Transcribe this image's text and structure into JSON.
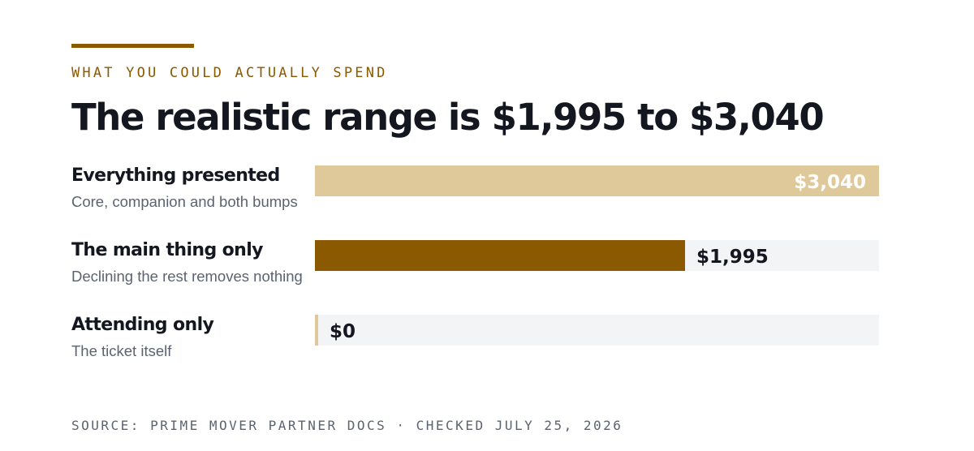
{
  "eyebrow": "WHAT YOU COULD ACTUALLY SPEND",
  "headline": "The realistic range is $1,995 to $3,040",
  "colors": {
    "accent": "#8b5a00",
    "bar_light": "#dfc99a",
    "track": "#f2f4f6",
    "ink": "#14171f",
    "muted": "#5c6370"
  },
  "chart_data": {
    "type": "bar",
    "orientation": "horizontal",
    "xlim": [
      0,
      3040
    ],
    "bars": [
      {
        "label": "Everything presented",
        "sublabel": "Core, companion and both bumps",
        "value": 3040,
        "value_label": "$3,040",
        "color": "#dfc99a",
        "label_position": "inside",
        "value_label_color": "#ffffff"
      },
      {
        "label": "The main thing only",
        "sublabel": "Declining the rest removes nothing",
        "value": 1995,
        "value_label": "$1,995",
        "color": "#8b5a00",
        "label_position": "outside",
        "value_label_color": "#14171f"
      },
      {
        "label": "Attending only",
        "sublabel": "The ticket itself",
        "value": 0,
        "value_label": "$0",
        "color": "#dfc99a",
        "label_position": "outside",
        "value_label_color": "#14171f"
      }
    ]
  },
  "source": "SOURCE: PRIME MOVER PARTNER DOCS · CHECKED JULY 25, 2026"
}
